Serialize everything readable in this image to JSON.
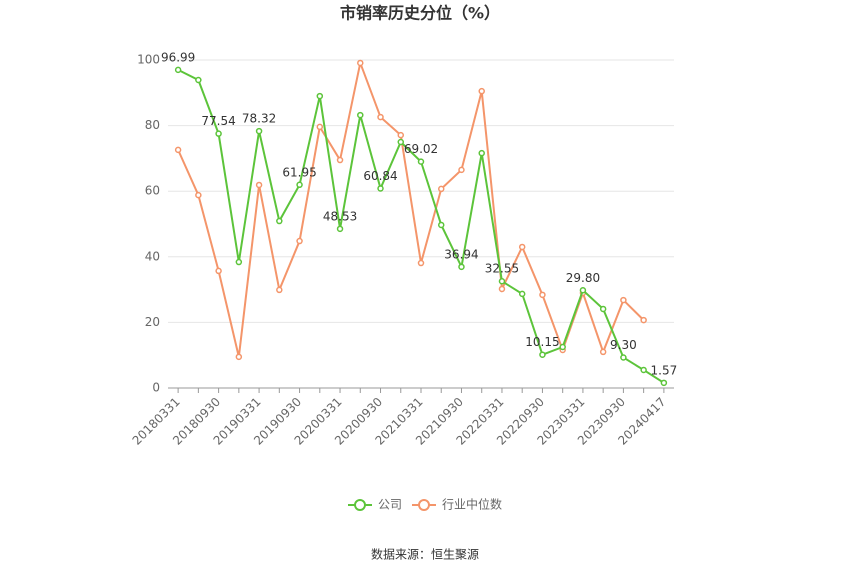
{
  "chart_data": {
    "type": "line",
    "title": "市销率历史分位（%）",
    "categories": [
      "20180331",
      null,
      "20180930",
      null,
      "20190331",
      null,
      "20190930",
      null,
      "20200331",
      null,
      "20200930",
      null,
      "20210331",
      null,
      "20210930",
      null,
      "20220331",
      null,
      "20220930",
      null,
      "20230331",
      null,
      "20230930",
      null,
      "20240417"
    ],
    "series": [
      {
        "name": "公司",
        "color": "#5cc43a",
        "values": [
          96.99,
          93.9,
          77.54,
          38.4,
          78.32,
          50.9,
          61.95,
          89.0,
          48.53,
          83.2,
          60.84,
          75.0,
          69.02,
          49.7,
          36.94,
          71.6,
          32.55,
          28.7,
          10.15,
          12.5,
          29.8,
          24.1,
          9.3,
          5.5,
          1.57
        ],
        "value_labels": [
          "96.99",
          null,
          "77.54",
          null,
          "78.32",
          null,
          "61.95",
          null,
          "48.53",
          null,
          "60.84",
          null,
          "69.02",
          null,
          "36.94",
          null,
          "32.55",
          null,
          "10.15",
          null,
          "29.80",
          null,
          "9.30",
          null,
          "1.57"
        ]
      },
      {
        "name": "行业中位数",
        "color": "#f4956a",
        "values": [
          72.6,
          58.8,
          35.7,
          9.5,
          61.9,
          29.9,
          44.8,
          79.6,
          69.5,
          99.1,
          82.6,
          77.1,
          38.1,
          60.7,
          66.5,
          90.5,
          30.2,
          43.0,
          28.4,
          11.6,
          29.0,
          11.0,
          26.8,
          20.7,
          null
        ]
      }
    ],
    "ylim": [
      0,
      100
    ],
    "yticks": [
      0,
      20,
      40,
      60,
      80,
      100
    ],
    "grid": true,
    "legend": "bottom",
    "source": "数据来源：恒生聚源"
  }
}
